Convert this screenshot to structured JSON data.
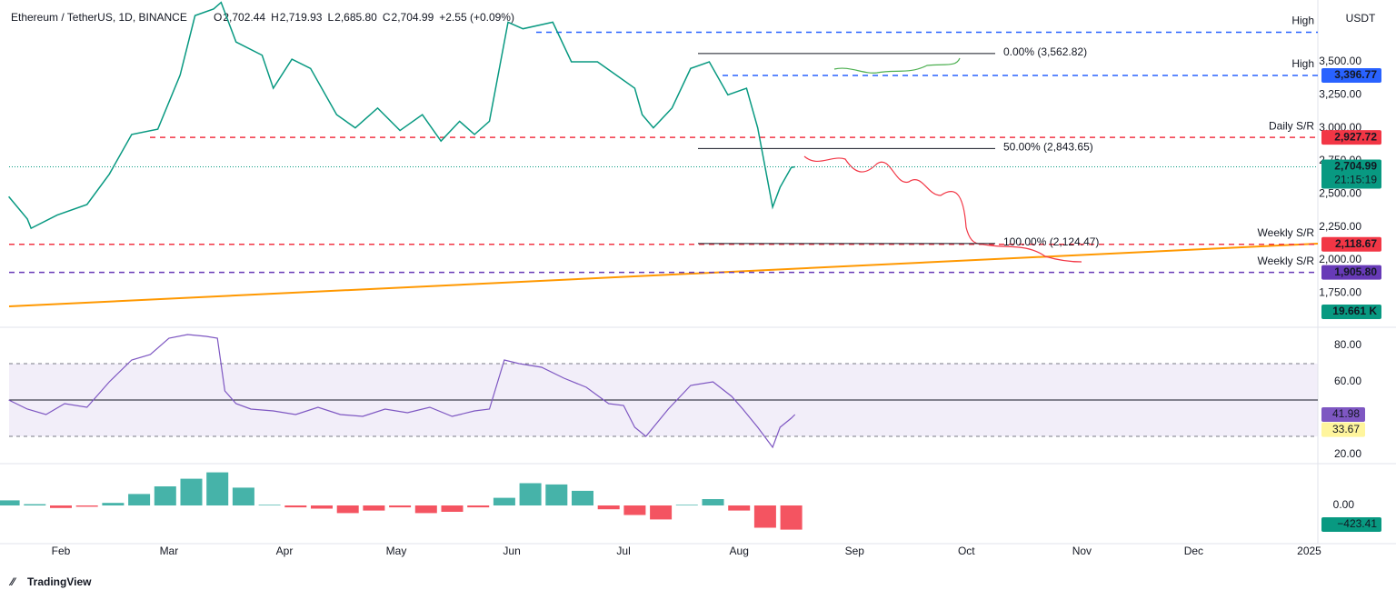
{
  "header": {
    "symbol": "Ethereum / TetherUS, 1D, BINANCE",
    "ohlc": [
      {
        "label": "O",
        "value": "2,702.44"
      },
      {
        "label": "H",
        "value": "2,719.93"
      },
      {
        "label": "L",
        "value": "2,685.80"
      },
      {
        "label": "C",
        "value": "2,704.99"
      }
    ],
    "change": "+2.55 (+0.09%)"
  },
  "price_axis": {
    "currency": "USDT",
    "ticks": [
      {
        "value": 3500,
        "label": "3,500.00"
      },
      {
        "value": 3250,
        "label": "3,250.00"
      },
      {
        "value": 3000,
        "label": "3,000.00"
      },
      {
        "value": 2750,
        "label": "2,750.00"
      },
      {
        "value": 2500,
        "label": "2,500.00"
      },
      {
        "value": 2250,
        "label": "2,250.00"
      },
      {
        "value": 2000,
        "label": "2,000.00"
      },
      {
        "value": 1750,
        "label": "1,750.00"
      }
    ]
  },
  "levels": [
    {
      "name": "High",
      "value": 3724,
      "color": "#2962ff"
    },
    {
      "name": "High",
      "value": 3396.77,
      "label": "3,396.77",
      "color": "#2962ff"
    },
    {
      "name": "Daily S/R",
      "value": 2927.72,
      "label": "2,927.72",
      "color": "#f23645"
    },
    {
      "name": "Weekly S/R",
      "value": 2118.67,
      "label": "2,118.67",
      "color": "#f23645"
    },
    {
      "name": "Weekly S/R",
      "value": 1905.8,
      "label": "1,905.80",
      "color": "#673ab7"
    }
  ],
  "fib": [
    {
      "label": "0.00% (3,562.82)",
      "value": 3562.82
    },
    {
      "label": "50.00% (2,843.65)",
      "value": 2843.65
    },
    {
      "label": "100.00% (2,124.47)",
      "value": 2124.47
    }
  ],
  "last_price": {
    "value": 2704.99,
    "label": "2,704.99",
    "countdown": "21:15:19"
  },
  "volume_label": "19.661 K",
  "price_path": {
    "days": [
      17,
      22,
      23,
      30,
      38,
      44,
      50,
      57,
      63,
      67,
      72,
      74,
      78,
      85,
      88,
      93,
      98,
      105,
      110,
      116,
      122,
      128,
      133,
      138,
      142,
      146,
      151,
      155,
      163,
      168,
      175,
      180,
      185,
      187,
      190,
      195,
      200,
      205,
      210,
      215,
      216,
      218,
      220,
      222,
      224,
      227,
      228
    ],
    "closes": [
      2480,
      2310,
      2240,
      2340,
      2420,
      2650,
      2950,
      2990,
      3400,
      3850,
      3900,
      3950,
      3650,
      3550,
      3300,
      3520,
      3450,
      3100,
      3000,
      3150,
      2980,
      3100,
      2900,
      3050,
      2950,
      3050,
      3800,
      3750,
      3800,
      3500,
      3500,
      3400,
      3300,
      3100,
      3000,
      3150,
      3450,
      3500,
      3250,
      3300,
      3200,
      3000,
      2700,
      2400,
      2550,
      2700,
      2705
    ]
  },
  "time_axis": [
    {
      "label": "Feb",
      "day": 31
    },
    {
      "label": "Mar",
      "day": 60
    },
    {
      "label": "Apr",
      "day": 91
    },
    {
      "label": "May",
      "day": 121
    },
    {
      "label": "Jun",
      "day": 152
    },
    {
      "label": "Jul",
      "day": 182
    },
    {
      "label": "Aug",
      "day": 213
    },
    {
      "label": "Sep",
      "day": 244
    },
    {
      "label": "Oct",
      "day": 274
    },
    {
      "label": "Nov",
      "day": 305
    },
    {
      "label": "Dec",
      "day": 335
    },
    {
      "label": "2025",
      "day": 366
    }
  ],
  "rsi": {
    "ticks": [
      {
        "value": 80,
        "label": "80.00"
      },
      {
        "value": 60,
        "label": "60.00"
      },
      {
        "value": 20,
        "label": "20.00"
      }
    ],
    "upper": 70,
    "middle": 50,
    "lower": 30,
    "value": 41.98,
    "value_label": "41.98",
    "ma": 33.67,
    "ma_label": "33.67",
    "days": [
      17,
      22,
      27,
      32,
      38,
      44,
      50,
      55,
      60,
      65,
      70,
      73,
      75,
      78,
      82,
      88,
      94,
      100,
      106,
      112,
      118,
      124,
      130,
      136,
      142,
      146,
      150,
      154,
      160,
      166,
      172,
      178,
      182,
      185,
      188,
      194,
      200,
      206,
      211,
      214,
      218,
      222,
      224,
      227,
      228
    ],
    "values": [
      50,
      45,
      42,
      48,
      46,
      60,
      72,
      75,
      84,
      86,
      85,
      84,
      55,
      48,
      45,
      44,
      42,
      46,
      42,
      41,
      45,
      43,
      46,
      41,
      44,
      45,
      72,
      70,
      68,
      62,
      57,
      48,
      47,
      35,
      30,
      45,
      58,
      60,
      52,
      45,
      35,
      24,
      35,
      40,
      42
    ]
  },
  "macd": {
    "zero_label": "0.00",
    "value_label": "−423.41",
    "days": [
      17,
      24,
      31,
      38,
      45,
      52,
      59,
      66,
      73,
      80,
      87,
      94,
      101,
      108,
      115,
      122,
      129,
      136,
      143,
      150,
      157,
      164,
      171,
      178,
      185,
      192,
      199,
      206,
      213,
      220,
      227
    ],
    "hist": [
      80,
      20,
      -40,
      -20,
      40,
      180,
      300,
      420,
      520,
      280,
      10,
      -30,
      -50,
      -120,
      -80,
      -30,
      -120,
      -100,
      -30,
      120,
      350,
      330,
      230,
      -60,
      -150,
      -220,
      10,
      100,
      -80,
      -350,
      -380
    ]
  },
  "brand": "TradingView"
}
